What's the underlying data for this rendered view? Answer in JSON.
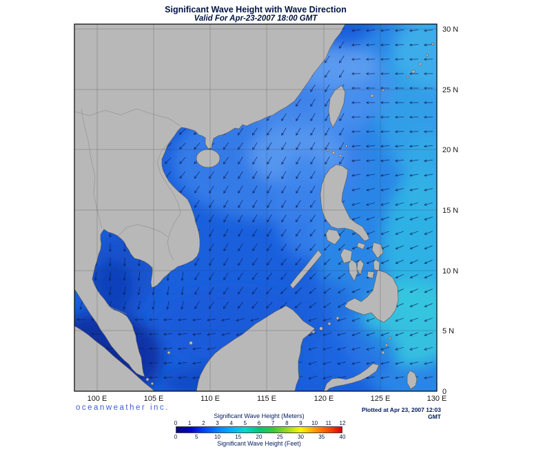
{
  "title": "Significant Wave Height with Wave Direction",
  "subtitle": "Valid For Apr-23-2007 18:00 GMT",
  "branding": "oceanweather inc.",
  "plotted_at": "Plotted at Apr 23, 2007 12:03 GMT",
  "colors": {
    "brand": "#3a5bd9",
    "land": "#b8b8b8",
    "ocean_base": "#1a60dd"
  },
  "map": {
    "lat_labels": [
      "30 N",
      "25 N",
      "20 N",
      "15 N",
      "10 N",
      "5 N",
      "0"
    ],
    "lon_labels": [
      "100 E",
      "105 E",
      "110 E",
      "115 E",
      "120 E",
      "125 E",
      "130 E"
    ]
  },
  "legend": {
    "meters_label": "Significant Wave Height (Meters)",
    "feet_label": "Significant Wave Height (Feet)",
    "meters_ticks": [
      "0",
      "1",
      "2",
      "3",
      "4",
      "5",
      "6",
      "7",
      "8",
      "9",
      "10",
      "11",
      "12"
    ],
    "feet_ticks": [
      "0",
      "5",
      "10",
      "15",
      "20",
      "25",
      "30",
      "35",
      "40"
    ],
    "colors": [
      "#0a0a78",
      "#0000c8",
      "#0040ff",
      "#0080ff",
      "#00b0ff",
      "#00d8d0",
      "#00c878",
      "#38c838",
      "#98d820",
      "#f8f800",
      "#ffa000",
      "#ff5000",
      "#dc0000"
    ]
  }
}
